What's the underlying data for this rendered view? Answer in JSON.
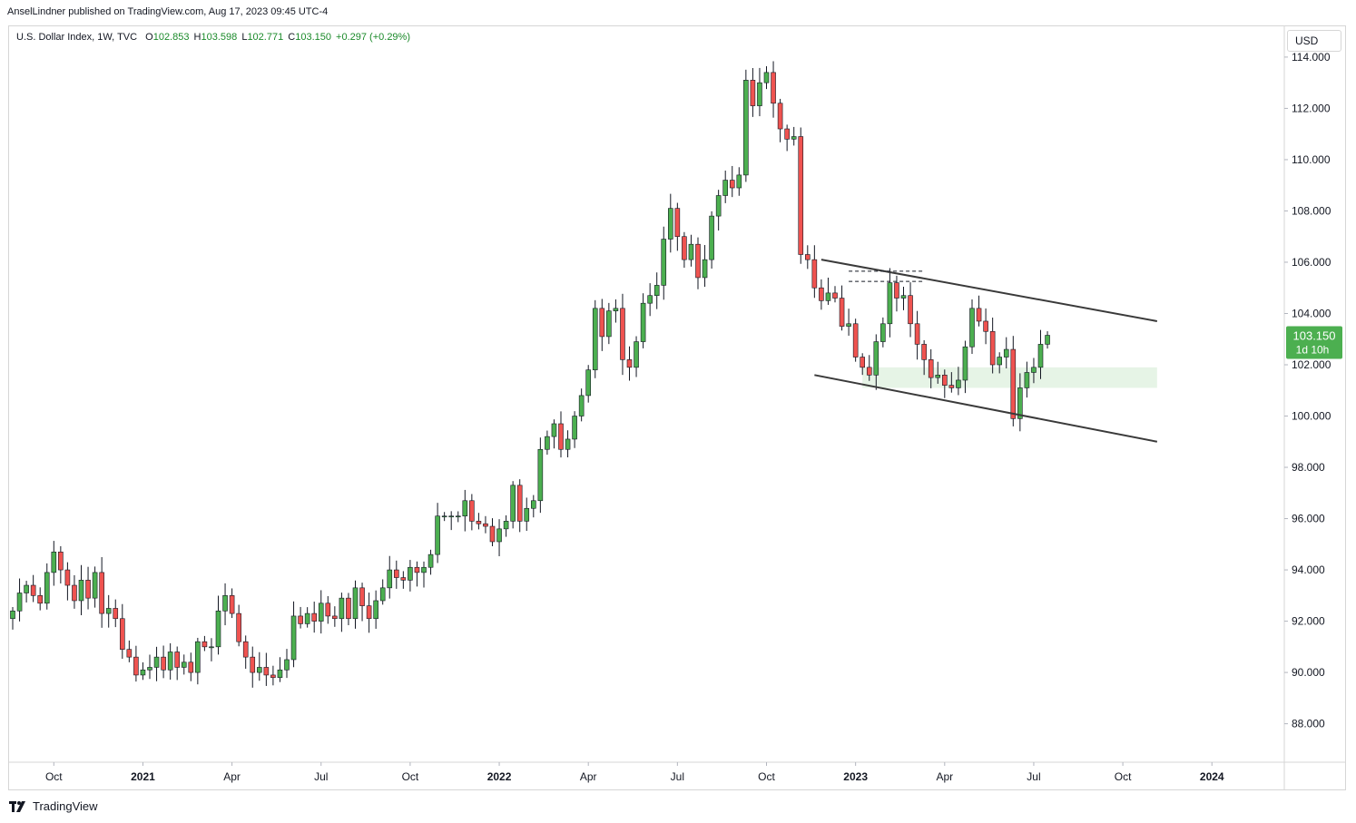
{
  "header": {
    "published_by": "AnselLindner published on TradingView.com, Aug 17, 2023 09:45 UTC-4"
  },
  "legend": {
    "symbol": "U.S. Dollar Index, 1W, TVC",
    "o_label": "O",
    "open": "102.853",
    "h_label": "H",
    "high": "103.598",
    "l_label": "L",
    "low": "102.771",
    "c_label": "C",
    "close": "103.150",
    "change": "+0.297 (+0.29%)"
  },
  "currency": "USD",
  "price_tag": {
    "price": "103.150",
    "countdown": "1d 10h"
  },
  "footer": {
    "brand": "TradingView"
  },
  "colors": {
    "up": "#4caf50",
    "down": "#ef5350",
    "wick": "#131722",
    "grid_border": "#d6d6d6",
    "zone": "#e6f4e6",
    "price_tag": "#4caf50"
  },
  "chart_data": {
    "type": "candlestick",
    "title": "U.S. Dollar Index, 1W, TVC",
    "ylim": [
      86.5,
      115.2
    ],
    "y_ticks": [
      "114.000",
      "112.000",
      "110.000",
      "108.000",
      "106.000",
      "104.000",
      "102.000",
      "100.000",
      "98.000",
      "96.000",
      "94.000",
      "92.000",
      "90.000",
      "88.000"
    ],
    "x_ticks": [
      {
        "label": "Oct",
        "index": 6,
        "bold": false
      },
      {
        "label": "2021",
        "index": 19,
        "bold": true
      },
      {
        "label": "Apr",
        "index": 32,
        "bold": false
      },
      {
        "label": "Jul",
        "index": 45,
        "bold": false
      },
      {
        "label": "Oct",
        "index": 58,
        "bold": false
      },
      {
        "label": "2022",
        "index": 71,
        "bold": true
      },
      {
        "label": "Apr",
        "index": 84,
        "bold": false
      },
      {
        "label": "Jul",
        "index": 97,
        "bold": false
      },
      {
        "label": "Oct",
        "index": 110,
        "bold": false
      },
      {
        "label": "2023",
        "index": 123,
        "bold": true
      },
      {
        "label": "Apr",
        "index": 136,
        "bold": false
      },
      {
        "label": "Jul",
        "index": 149,
        "bold": false
      },
      {
        "label": "Oct",
        "index": 162,
        "bold": false
      },
      {
        "label": "2024",
        "index": 175,
        "bold": true
      }
    ],
    "closes": [
      92.4,
      93.1,
      93.4,
      93.0,
      92.7,
      93.9,
      94.7,
      94.0,
      93.4,
      92.8,
      93.6,
      92.9,
      93.9,
      92.3,
      92.5,
      92.1,
      90.9,
      90.6,
      89.9,
      90.1,
      90.2,
      90.6,
      90.1,
      90.8,
      90.2,
      90.4,
      90.0,
      91.2,
      91.0,
      91.0,
      92.4,
      93.0,
      92.3,
      91.2,
      90.6,
      90.0,
      90.2,
      89.9,
      89.8,
      90.1,
      90.5,
      92.2,
      91.9,
      92.3,
      92.0,
      92.7,
      92.2,
      92.1,
      92.9,
      92.1,
      93.3,
      92.6,
      92.1,
      92.8,
      93.3,
      94.0,
      93.7,
      93.6,
      94.1,
      93.9,
      94.1,
      94.6,
      96.1,
      96.1,
      96.1,
      96.1,
      96.7,
      95.9,
      95.8,
      95.7,
      95.1,
      95.6,
      95.9,
      97.3,
      95.9,
      96.4,
      96.7,
      98.7,
      99.2,
      99.7,
      98.7,
      99.1,
      100.0,
      100.8,
      101.8,
      104.2,
      103.1,
      104.1,
      104.2,
      102.2,
      101.9,
      102.9,
      104.4,
      104.7,
      105.1,
      106.9,
      108.1,
      107.0,
      106.1,
      106.7,
      105.4,
      106.1,
      107.8,
      108.6,
      109.2,
      108.9,
      109.4,
      113.1,
      112.1,
      113.0,
      113.4,
      112.2,
      111.2,
      110.8,
      110.9,
      106.3,
      106.1,
      105.0,
      104.5,
      104.8,
      104.6,
      103.5,
      103.6,
      102.3,
      101.9,
      101.6,
      102.9,
      103.6,
      105.2,
      104.6,
      104.7,
      103.6,
      102.8,
      102.2,
      101.5,
      101.6,
      101.2,
      101.1,
      101.4,
      102.7,
      104.2,
      103.7,
      103.3,
      102.0,
      102.3,
      102.6,
      99.9,
      101.1,
      101.7,
      101.9,
      102.8,
      103.15
    ],
    "channel": {
      "upper": {
        "from": {
          "index": 118,
          "price": 106.1
        },
        "to": {
          "index": 167,
          "price": 103.7
        }
      },
      "lower": {
        "from": {
          "index": 117,
          "price": 101.6
        },
        "to": {
          "index": 167,
          "price": 99.0
        }
      }
    },
    "support_zone": {
      "from_index": 124,
      "to_index": 167,
      "top": 101.9,
      "bottom": 101.1
    },
    "dashed_lines": [
      {
        "from_index": 122,
        "to_index": 133,
        "price": 105.65
      },
      {
        "from_index": 122,
        "to_index": 133,
        "price": 105.25
      }
    ]
  }
}
